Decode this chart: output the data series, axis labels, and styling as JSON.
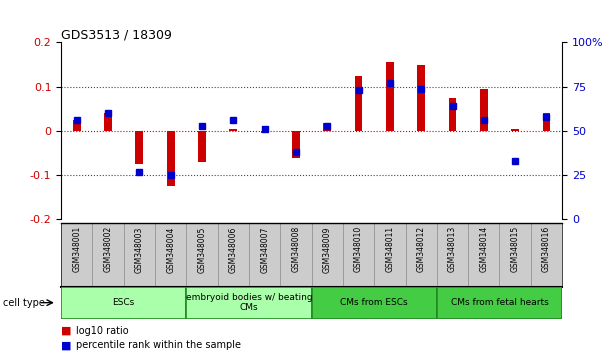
{
  "title": "GDS3513 / 18309",
  "samples": [
    "GSM348001",
    "GSM348002",
    "GSM348003",
    "GSM348004",
    "GSM348005",
    "GSM348006",
    "GSM348007",
    "GSM348008",
    "GSM348009",
    "GSM348010",
    "GSM348011",
    "GSM348012",
    "GSM348013",
    "GSM348014",
    "GSM348015",
    "GSM348016"
  ],
  "log10_ratio": [
    0.025,
    0.04,
    -0.075,
    -0.125,
    -0.07,
    0.005,
    -0.005,
    -0.06,
    0.018,
    0.125,
    0.155,
    0.15,
    0.075,
    0.095,
    0.005,
    0.04
  ],
  "percentile_rank": [
    56,
    60,
    27,
    25,
    53,
    56,
    51,
    38,
    53,
    73,
    77,
    74,
    64,
    56,
    33,
    58
  ],
  "groups": [
    {
      "label": "ESCs",
      "start": 0,
      "end": 3,
      "color": "#AAFFAA"
    },
    {
      "label": "embryoid bodies w/ beating\nCMs",
      "start": 4,
      "end": 7,
      "color": "#AAFFAA"
    },
    {
      "label": "CMs from ESCs",
      "start": 8,
      "end": 11,
      "color": "#44CC44"
    },
    {
      "label": "CMs from fetal hearts",
      "start": 12,
      "end": 15,
      "color": "#44CC44"
    }
  ],
  "ylim_left": [
    -0.2,
    0.2
  ],
  "ylim_right": [
    0,
    100
  ],
  "yticks_left": [
    -0.2,
    -0.1,
    0.0,
    0.1,
    0.2
  ],
  "yticks_right": [
    0,
    25,
    50,
    75,
    100
  ],
  "bar_color_red": "#CC0000",
  "bar_color_blue": "#0000CC",
  "dotted_line_color": "#444444",
  "zero_line_color": "#CC0000",
  "bar_width": 0.25,
  "blue_square_size": 4.5,
  "group_separator_color": "#228B22",
  "sample_bg_color": "#CCCCCC",
  "sample_border_color": "#888888"
}
